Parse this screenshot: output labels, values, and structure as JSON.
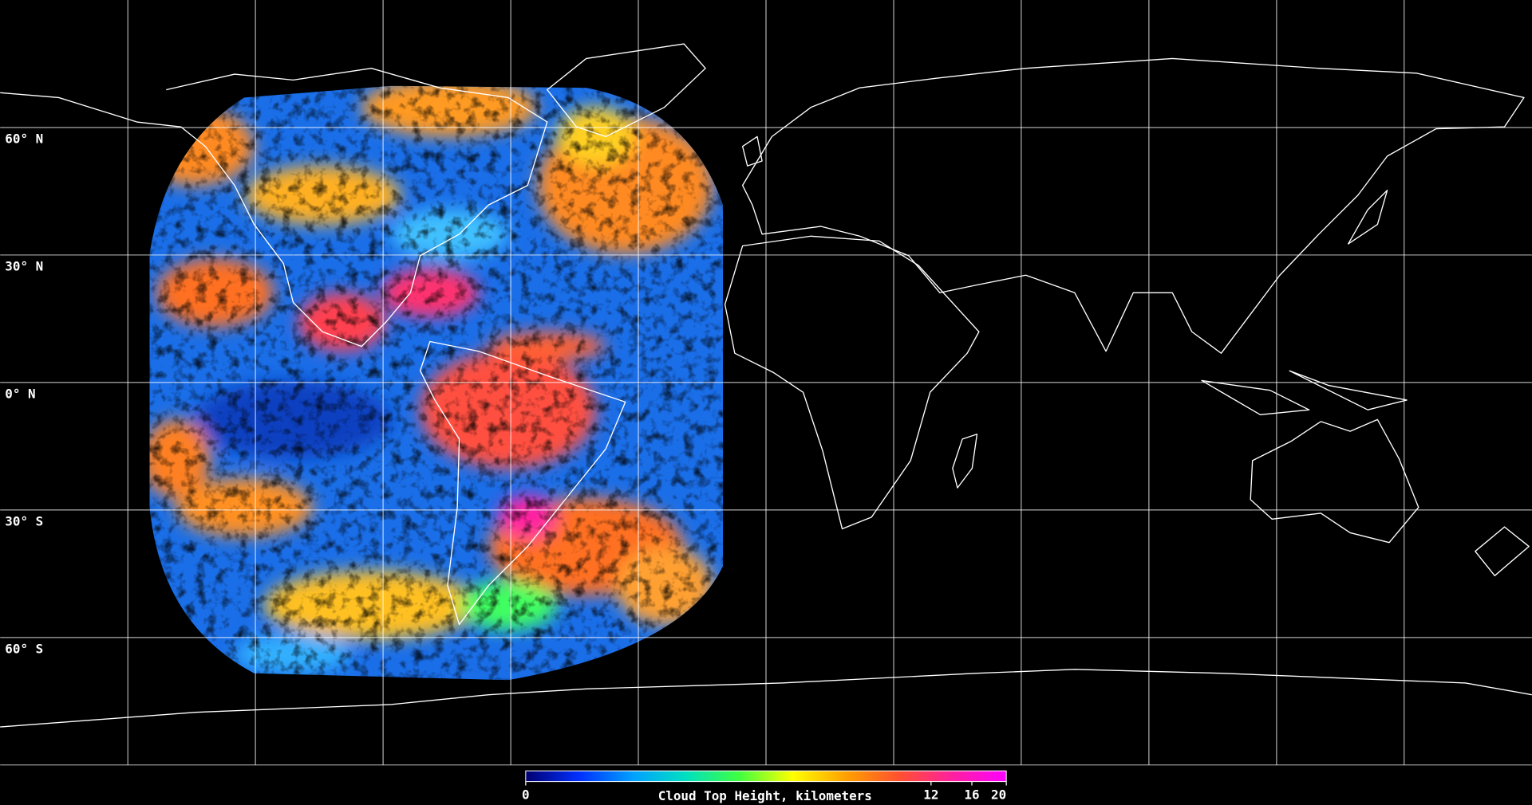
{
  "map": {
    "lat_labels": [
      {
        "value": 60,
        "label": "60° N"
      },
      {
        "value": 30,
        "label": "30° N"
      },
      {
        "value": 0,
        "label": "0° N"
      },
      {
        "value": -30,
        "label": "30° S"
      },
      {
        "value": -60,
        "label": "60° S"
      }
    ],
    "colorbar": {
      "label": "Cloud Top Height, kilometers",
      "range": [
        0,
        20
      ],
      "ticks": [
        0,
        12,
        16,
        20
      ],
      "scale": "cube-root",
      "colors": [
        "#000070",
        "#0030ff",
        "#00a0ff",
        "#00e0c0",
        "#40ff40",
        "#ffff00",
        "#ffa000",
        "#ff5030",
        "#ff20a0",
        "#ff00ff"
      ]
    }
  }
}
